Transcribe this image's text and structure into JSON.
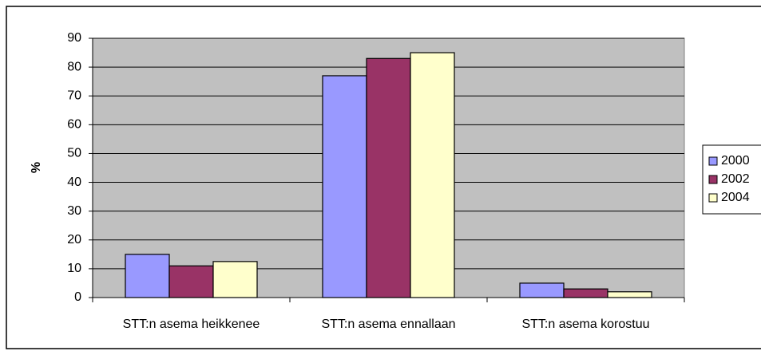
{
  "chart_data": {
    "type": "bar",
    "categories": [
      "STT:n asema heikkenee",
      "STT:n asema ennallaan",
      "STT:n asema korostuu"
    ],
    "series": [
      {
        "name": "2000",
        "color": "#9999ff",
        "values": [
          15,
          77,
          5
        ]
      },
      {
        "name": "2002",
        "color": "#993366",
        "values": [
          11,
          83,
          3
        ]
      },
      {
        "name": "2004",
        "color": "#ffffcc",
        "values": [
          12.5,
          85,
          2
        ]
      }
    ],
    "y_label": "%",
    "ylim": [
      0,
      90
    ],
    "yticks": [
      0,
      10,
      20,
      30,
      40,
      50,
      60,
      70,
      80,
      90
    ],
    "grid": true,
    "legend": "right",
    "plot_background": "#c0c0c0"
  }
}
